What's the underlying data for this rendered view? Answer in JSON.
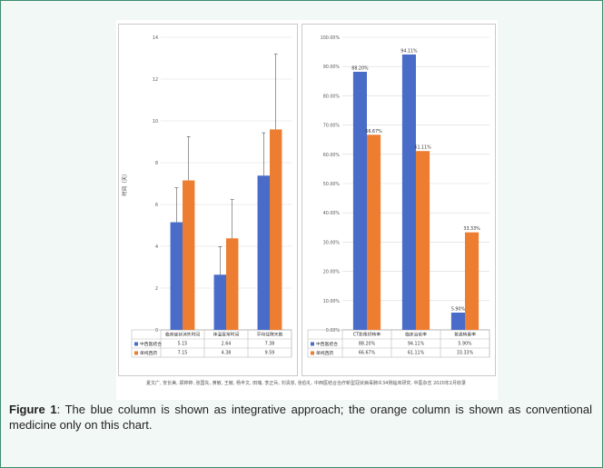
{
  "figure": {
    "label": "Figure 1",
    "caption_rest": ": The blue column is shown as integrative approach; the orange column is shown as conventional medicine only on this chart.",
    "source": "夏文广, 安长美, 郑婷婷, 张国先, 黄敏, 王敏, 杨丰文, 田瑞, 李正兵, 刘清泉, 张伯礼. 中西医结合治疗新型冠状病毒肺炎34例临床研究. 中医杂志 2020年2月收录"
  },
  "colors": {
    "blue": "#4a6cc9",
    "orange": "#ed7d31",
    "frame": "#3d8c6e"
  },
  "chart_data": [
    {
      "type": "bar",
      "ylabel": "时间（天）",
      "ylim": [
        0,
        14
      ],
      "yticks": [
        0,
        2,
        4,
        6,
        8,
        10,
        12,
        14
      ],
      "categories": [
        "临床症状消失时间",
        "体温复常时间",
        "平均住院天数"
      ],
      "series": [
        {
          "name": "中西医结合",
          "values": [
            5.15,
            2.64,
            7.38
          ],
          "errors": [
            1.65,
            1.35,
            2.05
          ],
          "table": [
            "5.15",
            "2.64",
            "7.38"
          ]
        },
        {
          "name": "单纯西药",
          "values": [
            7.15,
            4.38,
            9.59
          ],
          "errors": [
            2.1,
            1.85,
            3.6
          ],
          "table": [
            "7.15",
            "4.38",
            "9.59"
          ]
        }
      ]
    },
    {
      "type": "bar",
      "ylim": [
        0,
        100
      ],
      "yticks": [
        "0.00%",
        "10.00%",
        "20.00%",
        "30.00%",
        "40.00%",
        "50.00%",
        "60.00%",
        "70.00%",
        "80.00%",
        "90.00%",
        "100.00%"
      ],
      "categories": [
        "CT影像好转率",
        "临床治愈率",
        "普通转重率"
      ],
      "series": [
        {
          "name": "中西医结合",
          "values": [
            88.2,
            94.11,
            5.9
          ],
          "labels": [
            "88.20%",
            "94.11%",
            "5.90%"
          ]
        },
        {
          "name": "单纯西药",
          "values": [
            66.67,
            61.11,
            33.33
          ],
          "labels": [
            "66.67%",
            "61.11%",
            "33.33%"
          ]
        }
      ]
    }
  ]
}
